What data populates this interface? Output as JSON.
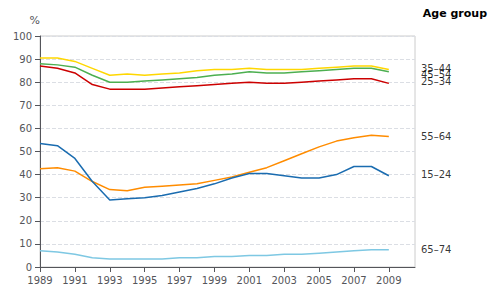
{
  "chart_data": {
    "type": "line",
    "x": [
      1989,
      1990,
      1991,
      1992,
      1993,
      1994,
      1995,
      1996,
      1997,
      1998,
      1999,
      2000,
      2001,
      2002,
      2003,
      2004,
      2005,
      2006,
      2007,
      2008,
      2009
    ],
    "series": [
      {
        "color": "#FFD700",
        "values": [
          90.5,
          90.5,
          89.0,
          86.0,
          83.0,
          83.5,
          83.0,
          83.5,
          84.0,
          85.0,
          85.5,
          85.5,
          86.0,
          85.5,
          85.5,
          85.5,
          86.0,
          86.5,
          87.0,
          87.0,
          85.5
        ]
      },
      {
        "color": "#4CAF50",
        "values": [
          88.0,
          87.5,
          86.5,
          83.0,
          80.0,
          80.0,
          80.5,
          81.0,
          81.5,
          82.0,
          83.0,
          83.5,
          84.5,
          84.0,
          84.0,
          84.5,
          85.0,
          85.5,
          86.0,
          86.0,
          84.5
        ]
      },
      {
        "color": "#CC0000",
        "values": [
          87.0,
          86.0,
          84.0,
          79.0,
          77.0,
          77.0,
          77.0,
          77.5,
          78.0,
          78.5,
          79.0,
          79.5,
          80.0,
          79.5,
          79.5,
          80.0,
          80.5,
          81.0,
          81.5,
          81.5,
          79.5
        ]
      },
      {
        "color": "#FF8C00",
        "values": [
          42.5,
          43.0,
          41.5,
          37.0,
          33.5,
          33.0,
          34.5,
          35.0,
          35.5,
          36.0,
          37.5,
          39.0,
          41.0,
          43.0,
          46.0,
          49.0,
          52.0,
          54.5,
          56.0,
          57.0,
          56.5
        ]
      },
      {
        "color": "#1A6CB0",
        "values": [
          53.5,
          52.5,
          47.0,
          37.0,
          29.0,
          29.5,
          30.0,
          31.0,
          32.5,
          34.0,
          36.0,
          38.5,
          40.5,
          40.5,
          39.5,
          38.5,
          38.5,
          40.0,
          43.5,
          43.5,
          39.5
        ]
      },
      {
        "color": "#7EC8E3",
        "values": [
          7.0,
          6.5,
          5.5,
          4.0,
          3.5,
          3.5,
          3.5,
          3.5,
          4.0,
          4.0,
          4.5,
          4.5,
          5.0,
          5.0,
          5.5,
          5.5,
          6.0,
          6.5,
          7.0,
          7.5,
          7.5
        ]
      }
    ],
    "xlim": [
      1989,
      2010.5
    ],
    "xticks": [
      1989,
      1991,
      1993,
      1995,
      1997,
      1999,
      2001,
      2003,
      2005,
      2007,
      2009
    ],
    "ylim": [
      0,
      100
    ],
    "yticks": [
      0,
      10,
      20,
      30,
      40,
      50,
      60,
      70,
      80,
      90,
      100
    ],
    "ylabel": "%",
    "grid": true,
    "annotations": [
      {
        "text": "Age group"
      },
      {
        "text": "35–44",
        "x": 2010.5,
        "y": 86.0
      },
      {
        "text": "45–54",
        "x": 2010.5,
        "y": 83.5
      },
      {
        "text": "25–34",
        "x": 2010.5,
        "y": 80.5
      },
      {
        "text": "55–64",
        "x": 2010.5,
        "y": 56.5
      },
      {
        "text": "15–24",
        "x": 2010.5,
        "y": 40.0
      },
      {
        "text": "65–74",
        "x": 2010.5,
        "y": 7.5
      }
    ]
  }
}
